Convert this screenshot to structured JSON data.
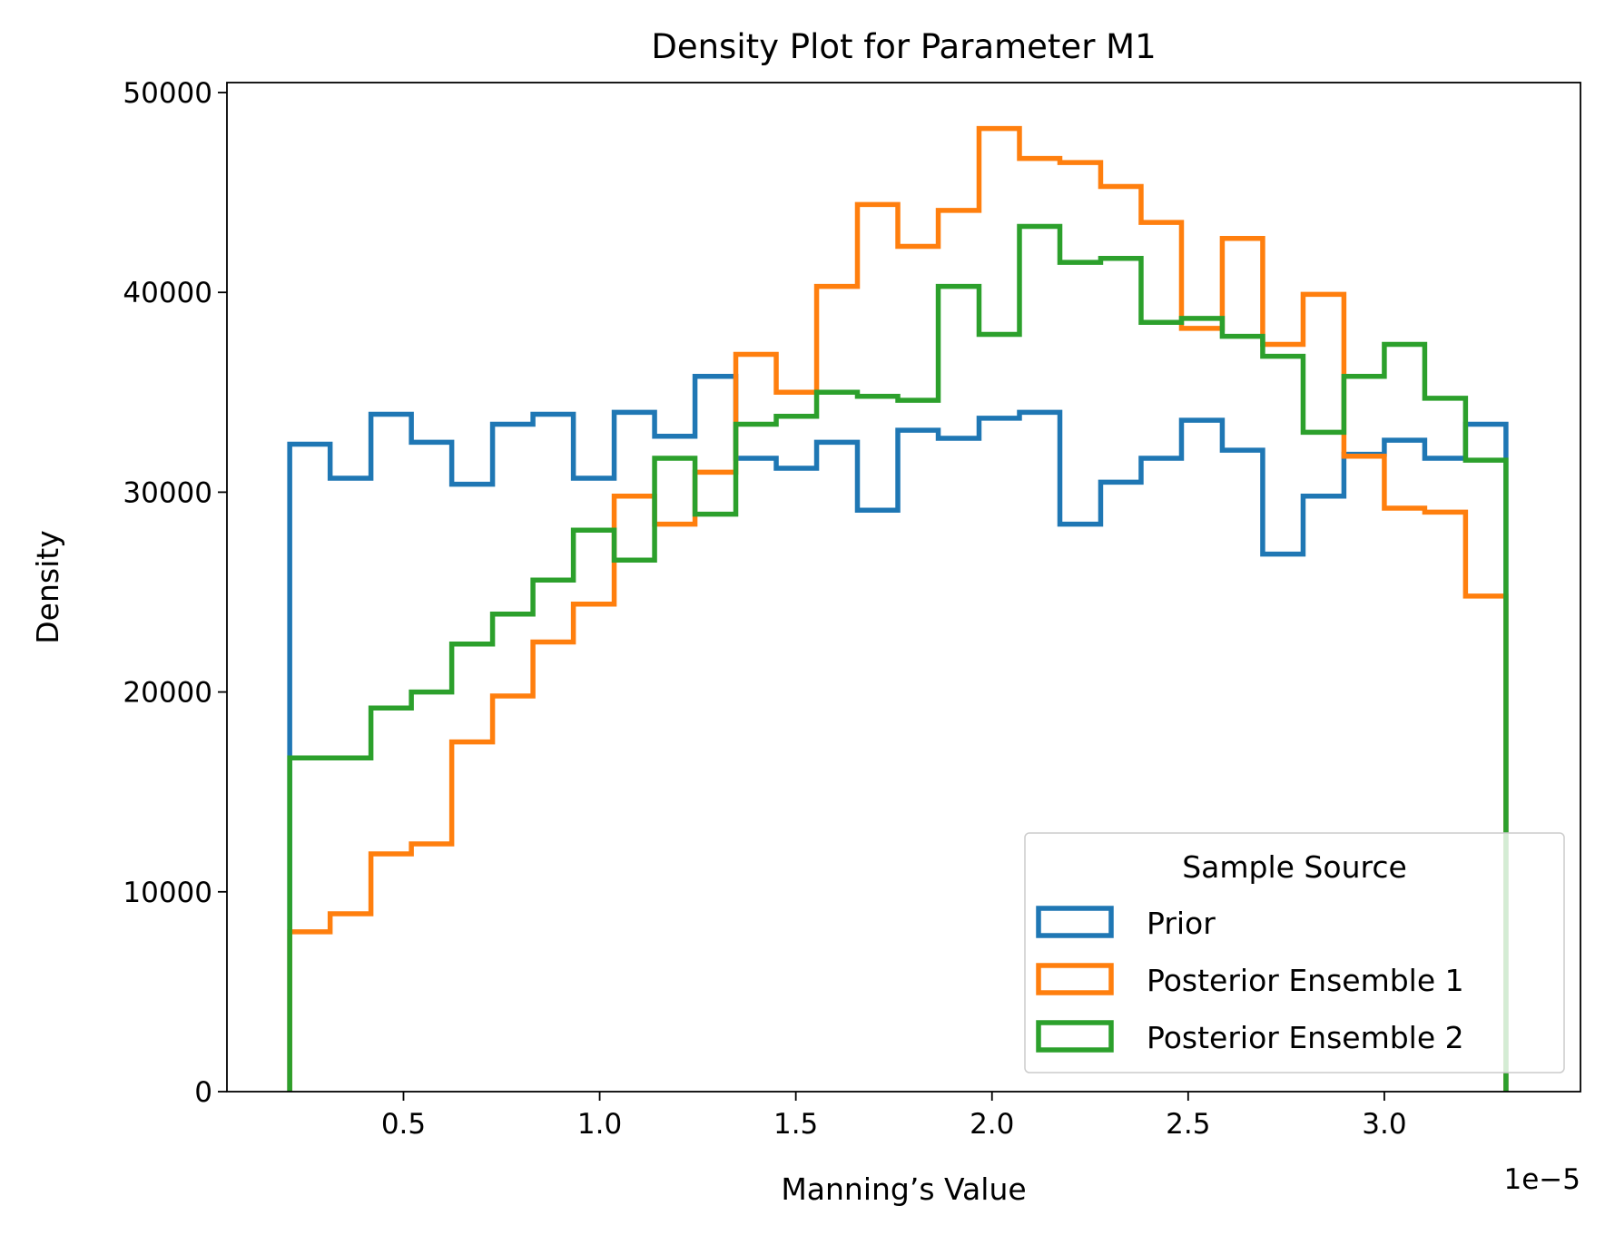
{
  "chart_data": {
    "type": "step-histogram",
    "title": "Density Plot for Parameter M1",
    "xlabel": "Manning’s Value",
    "ylabel": "Density",
    "x_offset_label": "1e−5",
    "xlim": [
      0.05,
      3.5
    ],
    "ylim": [
      0,
      50500
    ],
    "x_ticks": [
      0.5,
      1.0,
      1.5,
      2.0,
      2.5,
      3.0
    ],
    "x_tick_labels": [
      "0.5",
      "1.0",
      "1.5",
      "2.0",
      "2.5",
      "3.0"
    ],
    "y_ticks": [
      0,
      10000,
      20000,
      30000,
      40000,
      50000
    ],
    "y_tick_labels": [
      "0",
      "10000",
      "20000",
      "30000",
      "40000",
      "50000"
    ],
    "grid": false,
    "bin_edges": [
      0.21,
      0.313,
      0.417,
      0.52,
      0.623,
      0.727,
      0.83,
      0.933,
      1.037,
      1.14,
      1.243,
      1.347,
      1.45,
      1.553,
      1.657,
      1.76,
      1.863,
      1.967,
      2.07,
      2.173,
      2.277,
      2.38,
      2.483,
      2.587,
      2.69,
      2.793,
      2.897,
      3.0,
      3.103,
      3.207,
      3.31
    ],
    "legend": {
      "title": "Sample Source",
      "position": "lower-right"
    },
    "series": [
      {
        "name": "Prior",
        "color": "#1f77b4",
        "values": [
          32400,
          30700,
          33900,
          32500,
          30400,
          33400,
          33900,
          30700,
          34000,
          32800,
          35800,
          31700,
          31200,
          32500,
          29100,
          33100,
          32700,
          33700,
          34000,
          28400,
          30500,
          31700,
          33600,
          32100,
          26900,
          29800,
          31900,
          32600,
          31700,
          33400
        ]
      },
      {
        "name": "Posterior Ensemble 1",
        "color": "#ff7f0e",
        "values": [
          8000,
          8900,
          11900,
          12400,
          17500,
          19800,
          22500,
          24400,
          29800,
          28400,
          31000,
          36900,
          35000,
          40300,
          44400,
          42300,
          44100,
          48200,
          46700,
          46500,
          45300,
          43500,
          38200,
          42700,
          37400,
          39900,
          31800,
          29200,
          29000,
          24800
        ]
      },
      {
        "name": "Posterior Ensemble 2",
        "color": "#2ca02c",
        "values": [
          16700,
          16700,
          19200,
          20000,
          22400,
          23900,
          25600,
          28100,
          26600,
          31700,
          28900,
          33400,
          33800,
          35000,
          34800,
          34600,
          40300,
          37900,
          43300,
          41500,
          41700,
          38500,
          38700,
          37800,
          36800,
          33000,
          35800,
          37400,
          34700,
          31600
        ]
      }
    ]
  }
}
